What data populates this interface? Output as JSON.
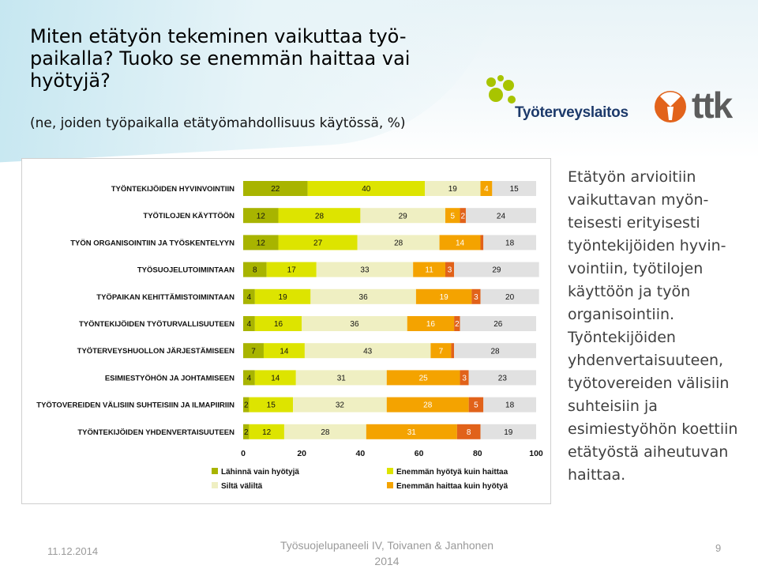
{
  "slide": {
    "title": "Miten etätyön tekeminen vaikuttaa työ-paikalla? Tuoko se enemmän haittaa vai hyötyjä?",
    "subtitle": "(ne, joiden työpaikalla etätyömahdollisuus käytössä, %)",
    "side_text": "Etätyön arvioitiin vaikuttavan myön-teisesti erityisesti työntekijöiden hyvin-vointiin, työtilojen käyttöön ja työn organisointiin. Työntekijöiden yhdenvertaisuuteen, työtovereiden välisiin suhteisiin ja esimiestyöhön koettiin etätyöstä aiheutuvan haittaa."
  },
  "logos": {
    "tyoterveyslaitos": "Työterveyslaitos",
    "ttk": "ttk"
  },
  "footer": {
    "date": "11.12.2014",
    "center": "Työsuojelupaneeli IV, Toivanen & Janhonen\n2014",
    "page": "9"
  },
  "colors": {
    "mostly_benefits": "#a8b400",
    "more_benefits": "#dde400",
    "neutral": "#efefc2",
    "more_harm": "#f4a300",
    "mostly_harm": "#e1621a",
    "no_answer": "#e1e1e1"
  },
  "chart_data": {
    "type": "bar",
    "orientation": "horizontal",
    "stacked": true,
    "categories": [
      "TYÖNTEKIJÖIDEN HYVINVOINTIIN",
      "TYÖTILOJEN KÄYTTÖÖN",
      "TYÖN ORGANISOINTIIN JA TYÖSKENTELYYN",
      "TYÖSUOJELUTOIMINTAAN",
      "TYÖPAIKAN KEHITTÄMISTOIMINTAAN",
      "TYÖNTEKIJÖIDEN TYÖTURVALLISUUTEEN",
      "TYÖTERVEYSHUOLLON JÄRJESTÄMISEEN",
      "ESIMIESTYÖHÖN JA JOHTAMISEEN",
      "TYÖTOVEREIDEN VÄLISIIN SUHTEISIIN JA ILMAPIIRIIN",
      "TYÖNTEKIJÖIDEN YHDENVERTAISUUTEEN"
    ],
    "series": [
      {
        "name": "Lähinnä vain hyötyjä",
        "color": "#a8b400",
        "values": [
          22,
          12,
          12,
          8,
          4,
          4,
          7,
          4,
          2,
          2
        ]
      },
      {
        "name": "Enemmän hyötyä kuin haittaa",
        "color": "#dde400",
        "values": [
          40,
          28,
          27,
          17,
          19,
          16,
          14,
          14,
          15,
          12
        ]
      },
      {
        "name": "Siltä väliltä",
        "color": "#efefc2",
        "values": [
          19,
          29,
          28,
          33,
          36,
          36,
          43,
          31,
          32,
          28
        ]
      },
      {
        "name": "Enemmän haittaa kuin hyötyä",
        "color": "#f4a300",
        "values": [
          4,
          5,
          14,
          11,
          19,
          16,
          7,
          25,
          28,
          31
        ]
      },
      {
        "name": "",
        "color": "#e1621a",
        "values": [
          0,
          2,
          1,
          3,
          3,
          2,
          1,
          3,
          5,
          8
        ]
      },
      {
        "name": "",
        "color": "#e1e1e1",
        "values": [
          15,
          24,
          18,
          29,
          20,
          26,
          28,
          23,
          18,
          19
        ]
      }
    ],
    "point_labels": [
      [
        "22",
        "40",
        "19",
        "4",
        "",
        "15"
      ],
      [
        "12",
        "28",
        "29",
        "5",
        "2",
        "24"
      ],
      [
        "12",
        "27",
        "28",
        "14",
        "",
        "18"
      ],
      [
        "8",
        "17",
        "33",
        "11",
        "3",
        "29"
      ],
      [
        "4",
        "19",
        "36",
        "19",
        "3",
        "20"
      ],
      [
        "4",
        "16",
        "36",
        "16",
        "2",
        "26"
      ],
      [
        "7",
        "14",
        "43",
        "7",
        "",
        "28"
      ],
      [
        "4",
        "14",
        "31",
        "25",
        "3",
        "23"
      ],
      [
        "2",
        "15",
        "32",
        "28",
        "5",
        "18"
      ],
      [
        "2",
        "12",
        "28",
        "31",
        "8",
        "19"
      ]
    ],
    "x_ticks": [
      0,
      20,
      40,
      60,
      80,
      100
    ],
    "xlim": [
      0,
      100
    ],
    "legend": [
      {
        "label": "Lähinnä vain hyötyjä",
        "color": "#a8b400"
      },
      {
        "label": "Enemmän hyötyä kuin haittaa",
        "color": "#dde400"
      },
      {
        "label": "Siltä väliltä",
        "color": "#efefc2"
      },
      {
        "label": "Enemmän haittaa kuin hyötyä",
        "color": "#f4a300"
      }
    ],
    "legend_placement": "bottom",
    "grid": false
  }
}
